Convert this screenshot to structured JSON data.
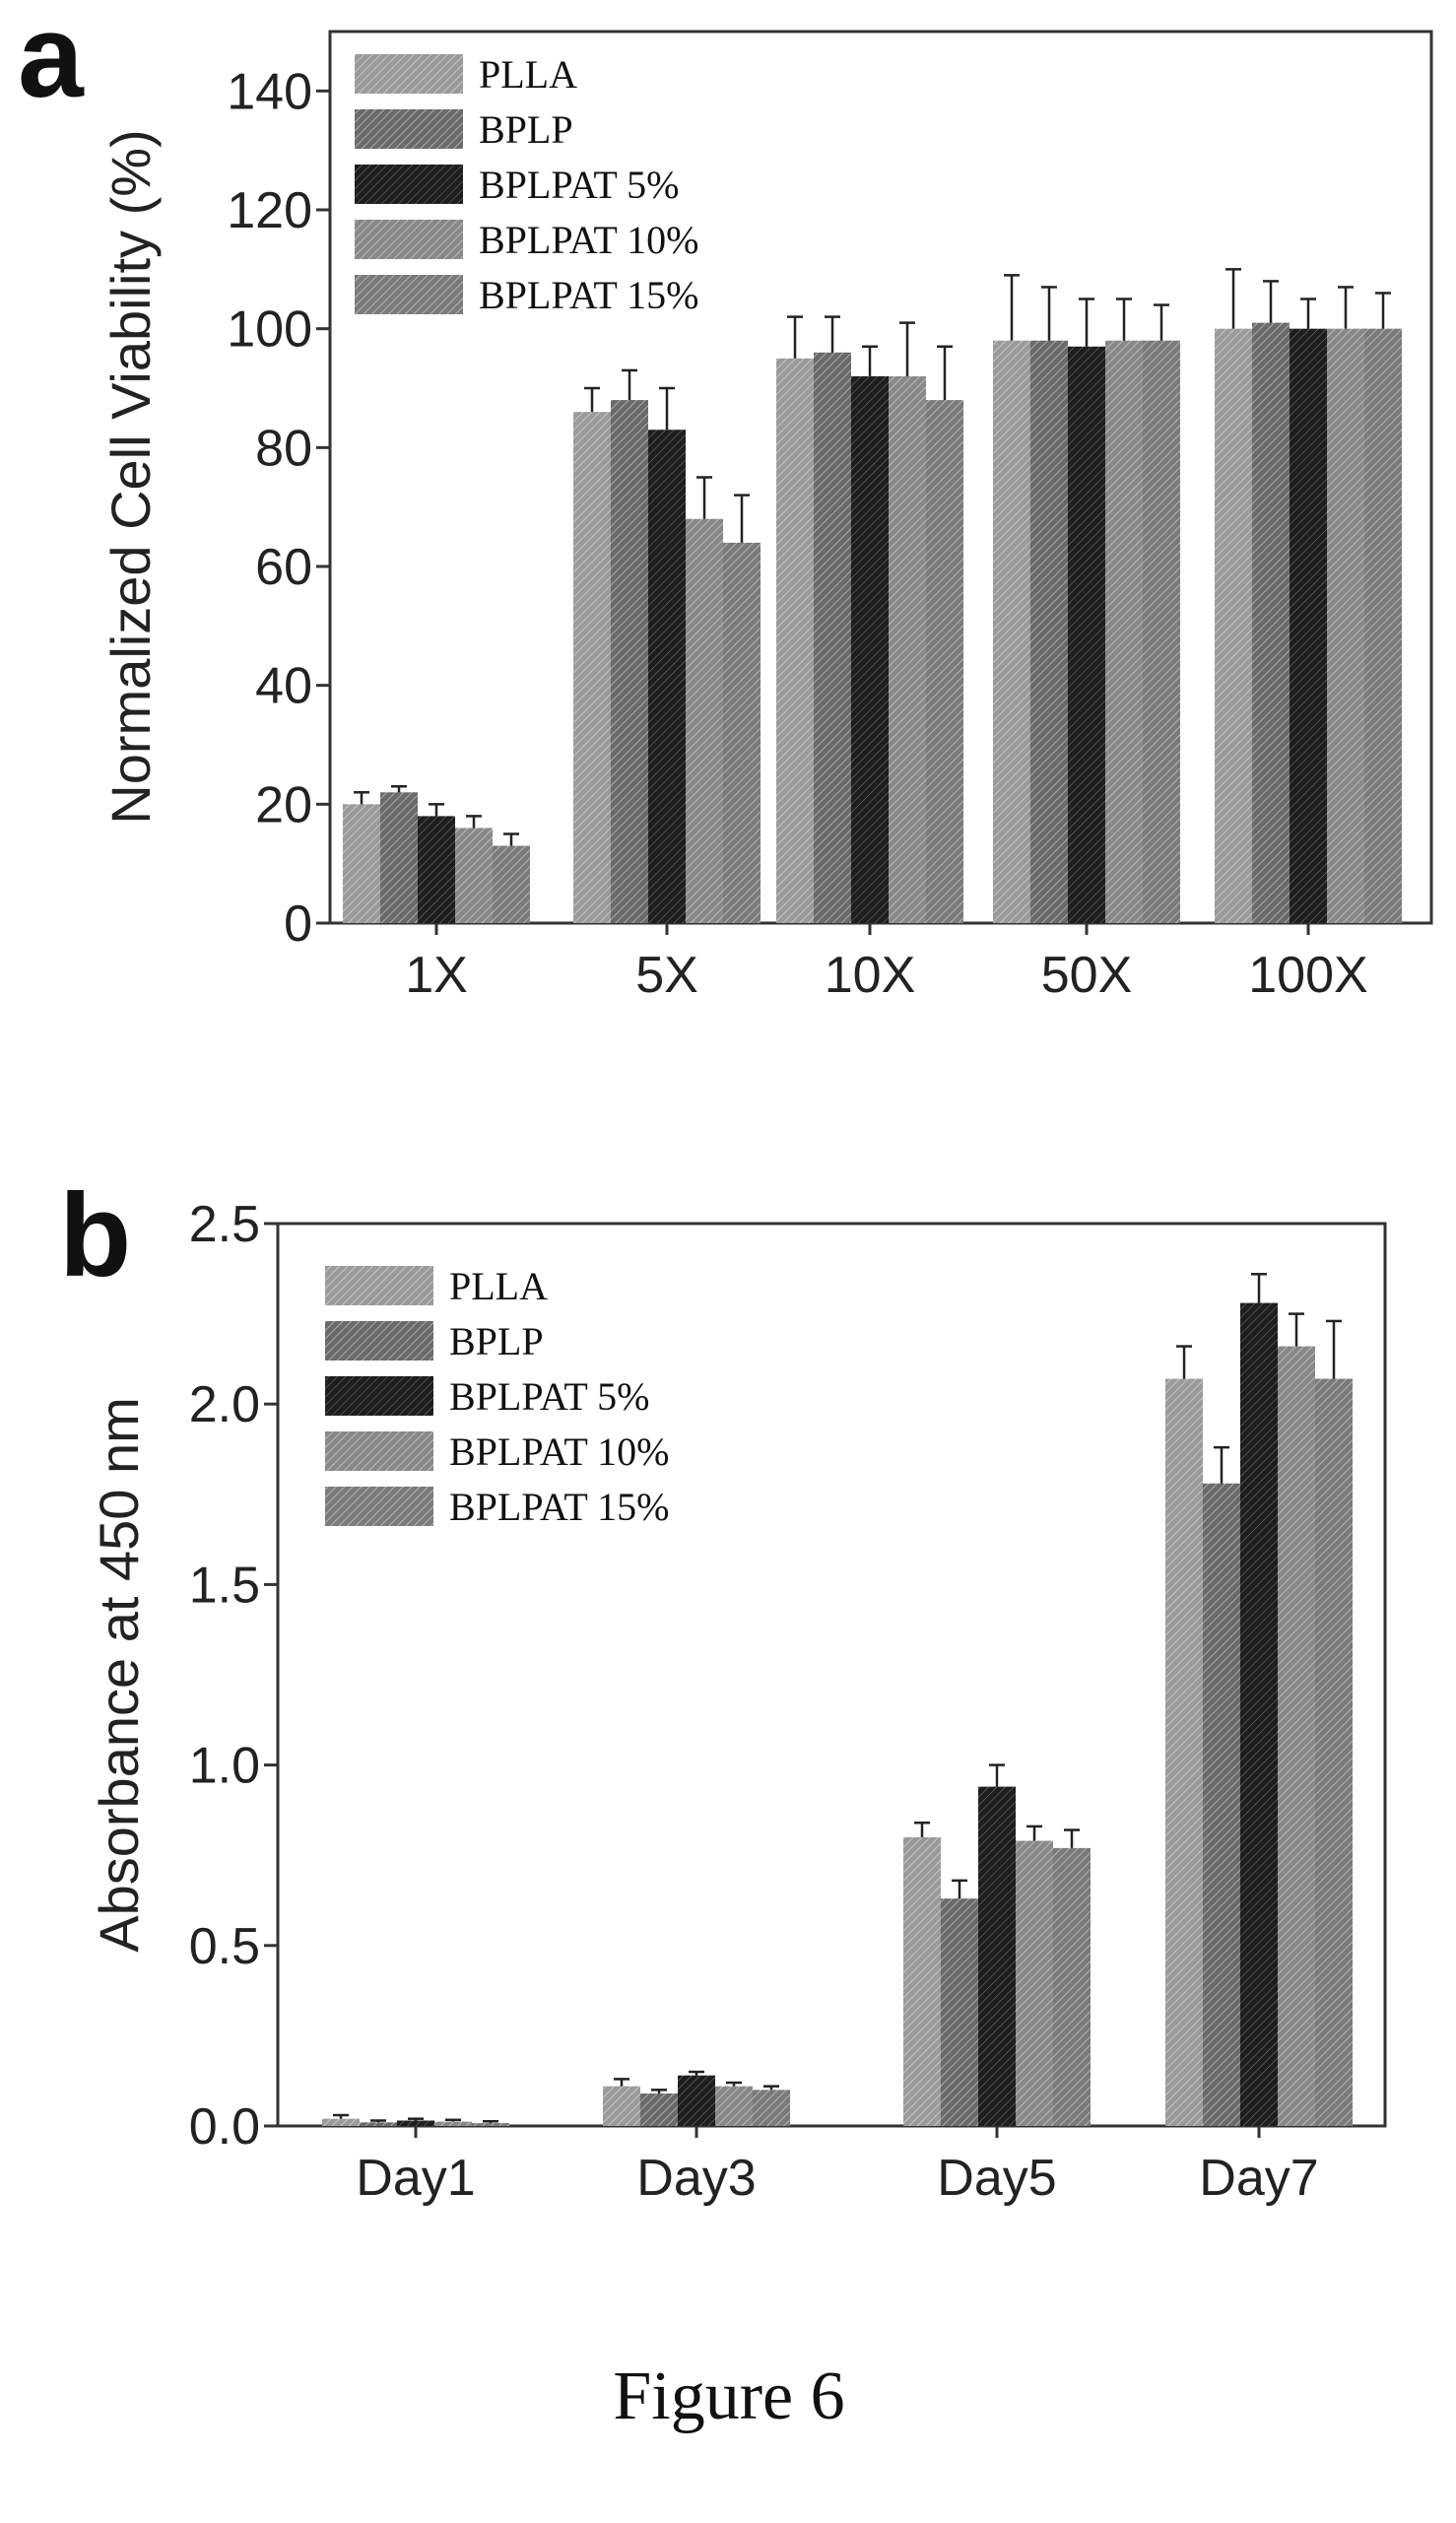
{
  "caption": "Figure 6",
  "colors": {
    "PLLA": "#9a9a9a",
    "BPLP": "#6a6a6a",
    "BPLPAT 5%": "#1e1e1e",
    "BPLPAT 10%": "#888888",
    "BPLPAT 15%": "#7a7a7a"
  },
  "chart_data": [
    {
      "panel": "a",
      "type": "bar",
      "ylabel": "Normalized Cell Viability (%)",
      "xlabel": "",
      "ylim": [
        0,
        150
      ],
      "yticks": [
        "0",
        "20",
        "40",
        "60",
        "80",
        "100",
        "120",
        "140"
      ],
      "ytick_values": [
        0,
        20,
        40,
        60,
        80,
        100,
        120,
        140
      ],
      "categories": [
        "1X",
        "5X",
        "10X",
        "50X",
        "100X"
      ],
      "legend_position": "top-left",
      "series": [
        {
          "name": "PLLA",
          "values": [
            20,
            86,
            95,
            98,
            100
          ],
          "errors": [
            2,
            4,
            7,
            11,
            10
          ]
        },
        {
          "name": "BPLP",
          "values": [
            22,
            88,
            96,
            98,
            101
          ],
          "errors": [
            1,
            5,
            6,
            9,
            7
          ]
        },
        {
          "name": "BPLPAT 5%",
          "values": [
            18,
            83,
            92,
            97,
            100
          ],
          "errors": [
            2,
            7,
            5,
            8,
            5
          ]
        },
        {
          "name": "BPLPAT 10%",
          "values": [
            16,
            68,
            92,
            98,
            100
          ],
          "errors": [
            2,
            7,
            9,
            7,
            7
          ]
        },
        {
          "name": "BPLPAT 15%",
          "values": [
            13,
            64,
            88,
            98,
            100
          ],
          "errors": [
            2,
            8,
            9,
            6,
            6
          ]
        }
      ]
    },
    {
      "panel": "b",
      "type": "bar",
      "ylabel": "Absorbance at 450 nm",
      "xlabel": "",
      "ylim": [
        0,
        2.5
      ],
      "yticks": [
        "0.0",
        "0.5",
        "1.0",
        "1.5",
        "2.0",
        "2.5"
      ],
      "ytick_values": [
        0,
        0.5,
        1.0,
        1.5,
        2.0,
        2.5
      ],
      "categories": [
        "Day1",
        "Day3",
        "Day5",
        "Day7"
      ],
      "legend_position": "top-left",
      "series": [
        {
          "name": "PLLA",
          "values": [
            0.02,
            0.11,
            0.8,
            2.07
          ],
          "errors": [
            0.01,
            0.02,
            0.04,
            0.09
          ]
        },
        {
          "name": "BPLP",
          "values": [
            0.01,
            0.09,
            0.63,
            1.78
          ],
          "errors": [
            0.005,
            0.01,
            0.05,
            0.1
          ]
        },
        {
          "name": "BPLPAT 5%",
          "values": [
            0.015,
            0.14,
            0.94,
            2.28
          ],
          "errors": [
            0.005,
            0.01,
            0.06,
            0.08
          ]
        },
        {
          "name": "BPLPAT 10%",
          "values": [
            0.012,
            0.11,
            0.79,
            2.16
          ],
          "errors": [
            0.005,
            0.01,
            0.04,
            0.09
          ]
        },
        {
          "name": "BPLPAT 15%",
          "values": [
            0.008,
            0.1,
            0.77,
            2.07
          ],
          "errors": [
            0.005,
            0.01,
            0.05,
            0.16
          ]
        }
      ]
    }
  ]
}
